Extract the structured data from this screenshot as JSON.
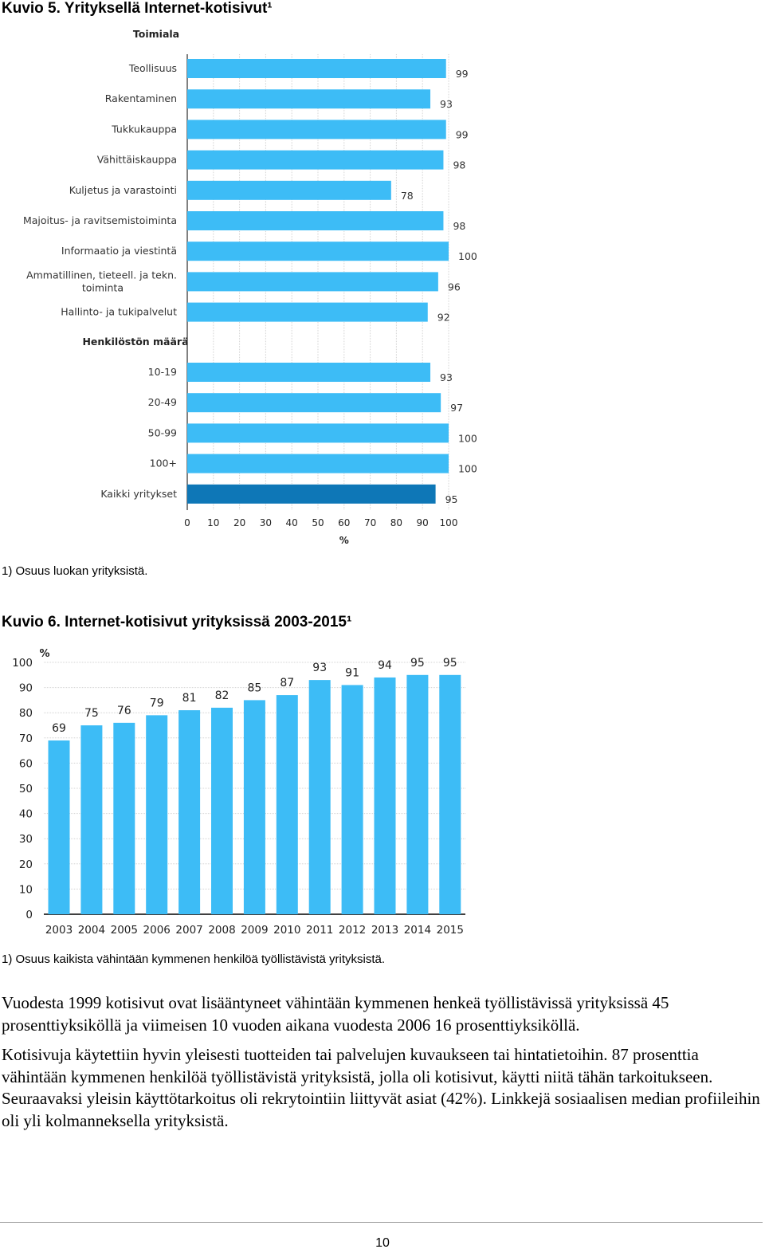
{
  "figure5": {
    "heading": "Kuvio 5. Yrityksellä Internet-kotisivut¹",
    "footnote": "1) Osuus luokan yrityksistä."
  },
  "figure6": {
    "heading": "Kuvio 6. Internet-kotisivut yrityksissä 2003-2015¹",
    "footnote": "1) Osuus kaikista vähintään kymmenen henkilöä työllistävistä yrityksistä."
  },
  "body": {
    "paragraph1": "Vuodesta 1999 kotisivut ovat lisääntyneet vähintään kymmenen henkeä työllistävissä yrityksissä 45 prosenttiyksiköllä ja viimeisen 10 vuoden aikana vuodesta 2006 16 prosenttiyksiköllä.",
    "paragraph2": "Kotisivuja käytettiin hyvin yleisesti tuotteiden tai palvelujen kuvaukseen tai hintatietoihin. 87 prosenttia vähintään kymmenen henkilöä työllistävistä yrityksistä, jolla oli kotisivut, käytti niitä tähän tarkoitukseen. Seuraavaksi yleisin käyttötarkoitus oli rekrytointiin liittyvät asiat (42%). Linkkejä sosiaalisen median profiileihin oli yli kolmanneksella yrityksistä."
  },
  "footer": {
    "page_number": "10"
  },
  "chart_data": [
    {
      "type": "bar",
      "orientation": "horizontal",
      "groups": [
        {
          "label": "Toimiala",
          "categories": [
            "Teollisuus",
            "Rakentaminen",
            "Tukkukauppa",
            "Vähittäiskauppa",
            "Kuljetus ja varastointi",
            "Majoitus- ja ravitsemistoiminta",
            "Informaatio ja viestintä",
            "Ammatillinen, tieteell. ja tekn. toiminta",
            "Hallinto- ja tukipalvelut"
          ],
          "values": [
            99,
            93,
            99,
            98,
            78,
            98,
            100,
            96,
            92
          ]
        },
        {
          "label": "Henkilöstön määrä",
          "categories": [
            "10-19",
            "20-49",
            "50-99",
            "100+",
            "Kaikki yritykset"
          ],
          "values": [
            93,
            97,
            100,
            100,
            95
          ]
        }
      ],
      "highlight_category": "Kaikki yritykset",
      "xlabel": "%",
      "xlim": [
        0,
        100
      ],
      "xticks": [
        0,
        10,
        20,
        30,
        40,
        50,
        60,
        70,
        80,
        90,
        100
      ],
      "grid": "vertical",
      "colors": {
        "bar": "#3dbcf6",
        "highlight": "#0e77b7",
        "axis": "#000000",
        "grid": "#d4d4d4"
      }
    },
    {
      "type": "bar",
      "categories": [
        "2003",
        "2004",
        "2005",
        "2006",
        "2007",
        "2008",
        "2009",
        "2010",
        "2011",
        "2012",
        "2013",
        "2014",
        "2015"
      ],
      "values": [
        69,
        75,
        76,
        79,
        81,
        82,
        85,
        87,
        93,
        91,
        94,
        95,
        95
      ],
      "ylabel": "%",
      "ylim": [
        0,
        100
      ],
      "yticks": [
        0,
        10,
        20,
        30,
        40,
        50,
        60,
        70,
        80,
        90,
        100
      ],
      "grid": "horizontal",
      "colors": {
        "bar": "#3dbcf6",
        "axis": "#000000",
        "grid": "#d4d4d4"
      }
    }
  ]
}
